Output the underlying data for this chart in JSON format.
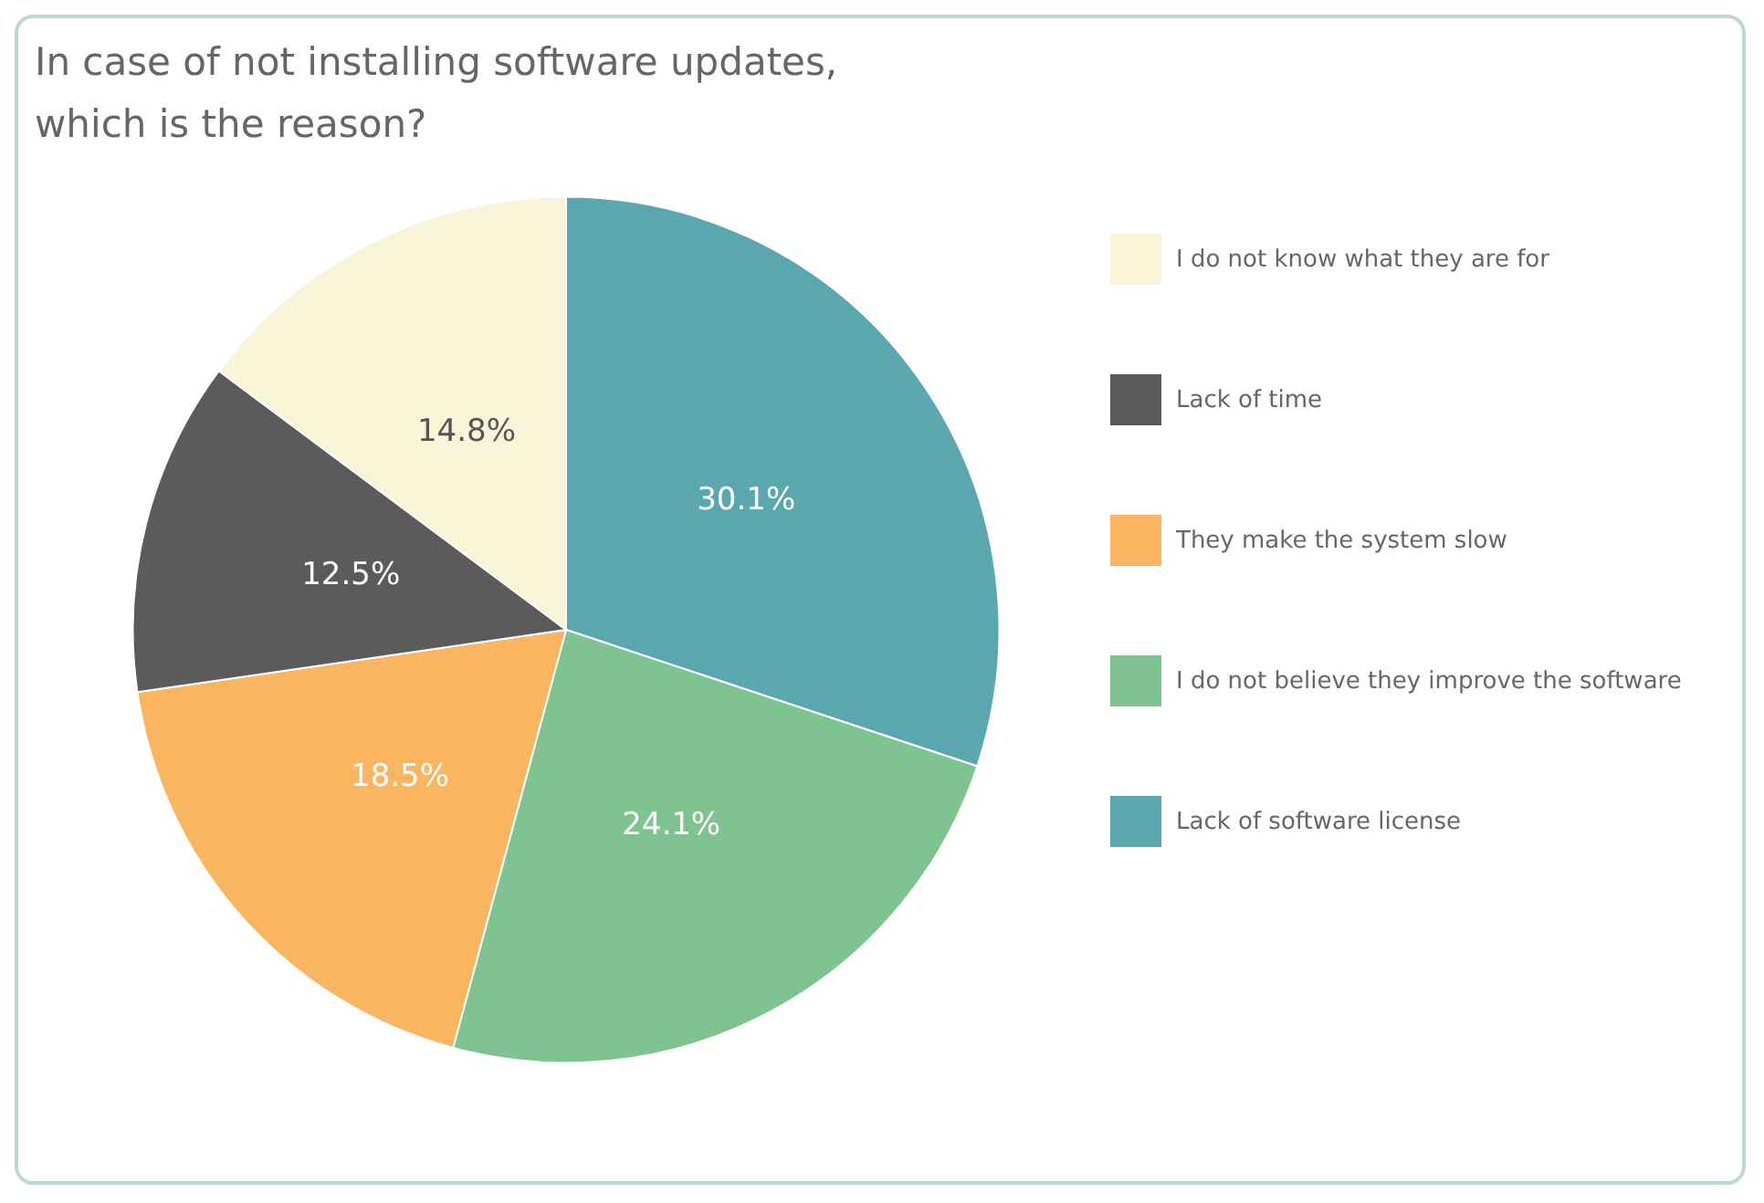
{
  "chart_data": {
    "type": "pie",
    "title": "In case of not installing software updates,\nwhich is the reason?",
    "categories": [
      "Lack of software license",
      "I do not believe they improve the software",
      "They make the system slow",
      "Lack of time",
      "I do not know what they are for"
    ],
    "values": [
      30.1,
      24.1,
      18.5,
      12.5,
      14.8
    ],
    "value_labels": [
      "30.1%",
      "24.1%",
      "18.5%",
      "12.5%",
      "14.8%"
    ],
    "colors": [
      "#5ba7b0",
      "#7fc390",
      "#f9b560",
      "#5b5b5b",
      "#f8f4d8"
    ],
    "data_labels": true,
    "legend": "right"
  }
}
